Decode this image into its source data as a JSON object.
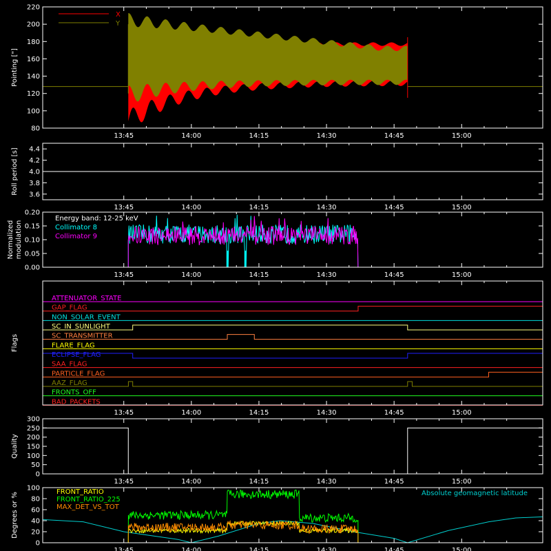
{
  "colors": {
    "background": "#000000",
    "axes": "#ffffff",
    "pointing_x": "#ff0000",
    "pointing_y": "#808000",
    "roll": "#ffffff",
    "coll8": "#00ffff",
    "coll9": "#ff00ff",
    "quality": "#ffffff",
    "front_ratio": "#ffff00",
    "front_ratio_225": "#00ff00",
    "max_det": "#ff8c00",
    "geomag": "#00d0d0"
  },
  "time_axis": {
    "ticks": [
      "13:45",
      "14:00",
      "14:15",
      "14:30",
      "14:45",
      "15:00"
    ]
  },
  "chart_data": [
    {
      "name": "pointing",
      "type": "line",
      "ylabel": "Pointing [\"]",
      "ylim": [
        80,
        220
      ],
      "yticks": [
        "80",
        "100",
        "120",
        "140",
        "160",
        "180",
        "200",
        "220"
      ],
      "legend": [
        "X",
        "Y"
      ],
      "baseline": 128,
      "active_start": "13:46",
      "active_end": "14:48",
      "series": [
        {
          "name": "X",
          "envelope_upper_start": 160,
          "envelope_upper_end": 177,
          "envelope_lower_start": 88,
          "envelope_lower_end": 132
        },
        {
          "name": "Y",
          "envelope_upper_start": 205,
          "envelope_upper_end": 172,
          "envelope_lower_start": 118,
          "envelope_lower_end": 133
        }
      ]
    },
    {
      "name": "roll_period",
      "type": "line",
      "ylabel": "Roll period [s]",
      "ylim": [
        3.5,
        4.5
      ],
      "yticks": [
        "3.6",
        "3.8",
        "4.0",
        "4.2",
        "4.4"
      ],
      "value": 4.0
    },
    {
      "name": "modulation",
      "type": "line",
      "ylabel": "Normalized modulation",
      "ylim": [
        0,
        0.2
      ],
      "yticks": [
        "0.00",
        "0.05",
        "0.10",
        "0.15",
        "0.20"
      ],
      "annotation": "Energy band: 12-25 keV",
      "legend": [
        "Collimator 8",
        "Collimator 9"
      ],
      "active_start": "13:46",
      "active_end": "14:37",
      "mean_level": 0.12,
      "dropouts": [
        "14:08",
        "14:12"
      ]
    },
    {
      "name": "flags",
      "type": "line",
      "ylabel": "Flags",
      "flags": [
        {
          "label": "ATTENUATOR_STATE",
          "color": "#ff00ff",
          "state": [
            [
              0,
              0
            ]
          ]
        },
        {
          "label": "GAP_FLAG",
          "color": "#ff2020",
          "state": [
            [
              0,
              0
            ],
            [
              14.617,
              1
            ]
          ]
        },
        {
          "label": "NON_SOLAR_EVENT",
          "color": "#00e0e0",
          "state": [
            [
              0,
              0
            ]
          ]
        },
        {
          "label": "SC_IN_SUNLIGHT",
          "color": "#ffff80",
          "state": [
            [
              0,
              0
            ],
            [
              13.783,
              1
            ],
            [
              14.8,
              0
            ]
          ]
        },
        {
          "label": "SC_TRANSMITTER",
          "color": "#ff8040",
          "state": [
            [
              0,
              0
            ],
            [
              14.133,
              1
            ],
            [
              14.233,
              0
            ]
          ]
        },
        {
          "label": "FLARE_FLAG",
          "color": "#ffff00",
          "state": [
            [
              0,
              0
            ]
          ]
        },
        {
          "label": "ECLIPSE_FLAG",
          "color": "#2020ff",
          "state": [
            [
              0,
              1
            ],
            [
              13.783,
              0
            ],
            [
              14.8,
              1
            ]
          ]
        },
        {
          "label": "SAA_FLAG",
          "color": "#ff2020",
          "state": [
            [
              0,
              0
            ]
          ]
        },
        {
          "label": "PARTICLE_FLAG",
          "color": "#ff6020",
          "state": [
            [
              0,
              0
            ],
            [
              15.1,
              1
            ]
          ]
        },
        {
          "label": "AAZ_FLAG",
          "color": "#808000",
          "state": [
            [
              0,
              0
            ],
            [
              13.767,
              1
            ],
            [
              13.783,
              0
            ],
            [
              14.8,
              1
            ],
            [
              14.817,
              0
            ]
          ]
        },
        {
          "label": "FRONTS_OFF",
          "color": "#20ff20",
          "state": [
            [
              0,
              0
            ]
          ]
        },
        {
          "label": "BAD_PACKETS",
          "color": "#ff2020",
          "state": [
            [
              0,
              0
            ]
          ]
        }
      ]
    },
    {
      "name": "quality",
      "type": "line",
      "ylabel": "Quality",
      "ylim": [
        0,
        300
      ],
      "yticks": [
        "0",
        "50",
        "100",
        "150",
        "200",
        "250",
        "300"
      ],
      "value_high": 250,
      "low_start": "13:46",
      "low_end": "14:48"
    },
    {
      "name": "ratios",
      "type": "line",
      "ylabel": "Degrees or %",
      "ylim": [
        0,
        100
      ],
      "yticks": [
        "0",
        "20",
        "40",
        "60",
        "80",
        "100"
      ],
      "legend": [
        "FRONT_RATIO",
        "FRONT_RATIO_225",
        "MAX_DET_VS_TOT"
      ],
      "annotation": "Absolute geomagnetic latitude",
      "active_start": "13:46",
      "active_end": "14:37",
      "series": [
        {
          "name": "FRONT_RATIO",
          "segments": [
            [
              13.767,
              14.133,
              22
            ],
            [
              14.133,
              14.4,
              35
            ],
            [
              14.4,
              14.617,
              22
            ]
          ]
        },
        {
          "name": "FRONT_RATIO_225",
          "segments": [
            [
              13.767,
              14.133,
              50
            ],
            [
              14.133,
              14.4,
              88
            ],
            [
              14.4,
              14.617,
              45
            ]
          ]
        },
        {
          "name": "MAX_DET_VS_TOT",
          "segments": [
            [
              13.767,
              14.133,
              28
            ],
            [
              14.133,
              14.4,
              32
            ],
            [
              14.4,
              14.617,
              25
            ]
          ]
        }
      ],
      "geomag_latitude": [
        [
          13.45,
          42
        ],
        [
          13.6,
          38
        ],
        [
          13.75,
          20
        ],
        [
          13.95,
          6
        ],
        [
          14.0,
          0
        ],
        [
          14.1,
          12
        ],
        [
          14.25,
          35
        ],
        [
          14.33,
          40
        ],
        [
          14.45,
          35
        ],
        [
          14.6,
          20
        ],
        [
          14.75,
          8
        ],
        [
          14.8,
          0
        ],
        [
          14.95,
          22
        ],
        [
          15.1,
          38
        ],
        [
          15.2,
          45
        ],
        [
          15.3,
          47
        ]
      ]
    }
  ]
}
